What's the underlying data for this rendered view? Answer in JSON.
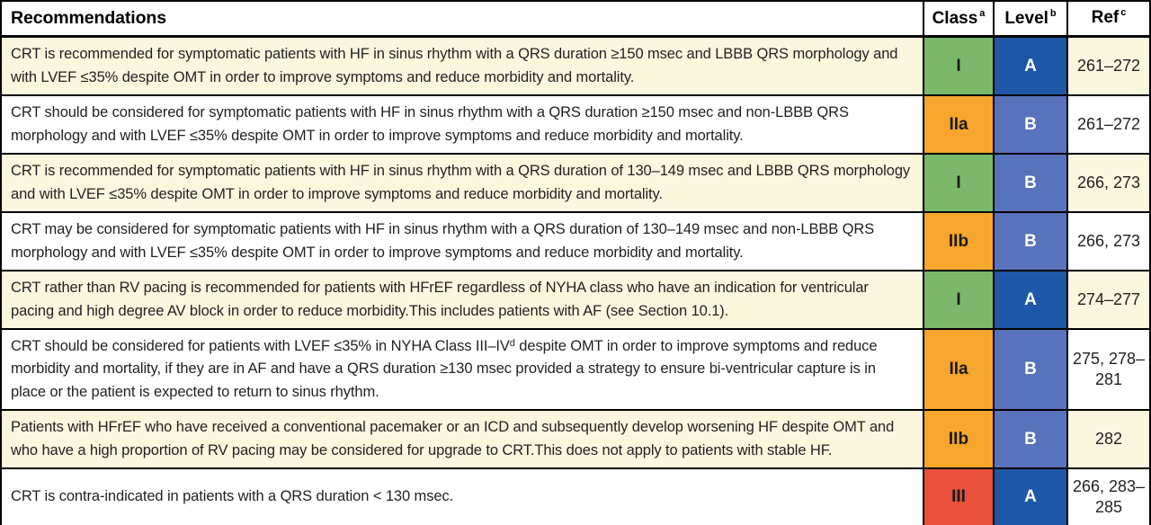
{
  "colors": {
    "cream": "#fbf6de",
    "white": "#ffffff",
    "green": "#7bb869",
    "orange": "#f6a62c",
    "red": "#e8513b",
    "blue_dark": "#1d57a6",
    "blue_mid": "#5872bb",
    "border": "#000000",
    "text": "#231f20"
  },
  "table": {
    "header": {
      "recommendations": "Recommendations",
      "class_label": "Class",
      "class_sup": "a",
      "level_label": "Level",
      "level_sup": "b",
      "ref_label": "Ref",
      "ref_sup": "c"
    },
    "rows": [
      {
        "text": "CRT is recommended for symptomatic patients with HF in sinus rhythm with a QRS duration ≥150 msec and LBBB QRS morphology and with LVEF ≤35% despite OMT in order to improve symptoms and reduce morbidity and mortality.",
        "sup": "",
        "text_after": "",
        "class": "I",
        "level": "A",
        "ref": "261–272",
        "bg": "cream",
        "class_color": "green",
        "level_color": "blue_dark"
      },
      {
        "text": "CRT should be considered for symptomatic patients with HF in sinus rhythm with a QRS duration ≥150 msec and non-LBBB QRS morphology and with LVEF ≤35% despite OMT in order to improve symptoms and reduce morbidity and mortality.",
        "sup": "",
        "text_after": "",
        "class": "IIa",
        "level": "B",
        "ref": "261–272",
        "bg": "white",
        "class_color": "orange",
        "level_color": "blue_mid"
      },
      {
        "text": "CRT is recommended for symptomatic patients with HF in sinus rhythm with a QRS duration of 130–149 msec and LBBB QRS morphology and with LVEF ≤35% despite OMT in order to improve symptoms and reduce morbidity and mortality.",
        "sup": "",
        "text_after": "",
        "class": "I",
        "level": "B",
        "ref": "266, 273",
        "bg": "cream",
        "class_color": "green",
        "level_color": "blue_mid"
      },
      {
        "text": "CRT may be considered for symptomatic patients with HF in sinus rhythm with a QRS duration of 130–149 msec and non-LBBB QRS morphology and with LVEF ≤35% despite OMT in order to improve symptoms and reduce morbidity and mortality.",
        "sup": "",
        "text_after": "",
        "class": "IIb",
        "level": "B",
        "ref": "266, 273",
        "bg": "white",
        "class_color": "orange",
        "level_color": "blue_mid"
      },
      {
        "text": "CRT rather than RV pacing is recommended for patients with HFrEF regardless of NYHA class who have an indication for ventricular pacing and high degree AV block in order to reduce morbidity.This includes patients with AF (see Section 10.1).",
        "sup": "",
        "text_after": "",
        "class": "I",
        "level": "A",
        "ref": "274–277",
        "bg": "cream",
        "class_color": "green",
        "level_color": "blue_dark"
      },
      {
        "text": "CRT should be considered for patients with LVEF ≤35% in NYHA Class III–IV",
        "sup": "d",
        "text_after": " despite OMT in order to improve symptoms and reduce morbidity and mortality, if they are in AF and have a QRS duration ≥130 msec provided a strategy to ensure bi-ventricular capture is in place or the patient is expected to return to sinus rhythm.",
        "class": "IIa",
        "level": "B",
        "ref": "275, 278–281",
        "bg": "white",
        "class_color": "orange",
        "level_color": "blue_mid"
      },
      {
        "text": "Patients with HFrEF who have received a conventional pacemaker or an ICD and subsequently develop worsening HF despite OMT and who have a high proportion of RV pacing may be considered for upgrade to CRT.This does not apply to patients with stable HF.",
        "sup": "",
        "text_after": "",
        "class": "IIb",
        "level": "B",
        "ref": "282",
        "bg": "cream",
        "class_color": "orange",
        "level_color": "blue_mid"
      },
      {
        "text": "CRT is contra-indicated in patients with a QRS duration < 130 msec.",
        "sup": "",
        "text_after": "",
        "class": "III",
        "level": "A",
        "ref": "266, 283–285",
        "bg": "white",
        "class_color": "red",
        "level_color": "blue_dark"
      }
    ]
  }
}
